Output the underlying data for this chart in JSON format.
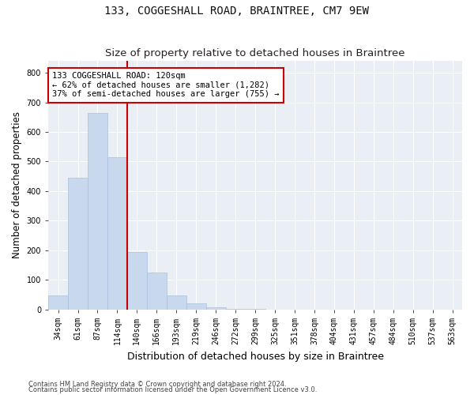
{
  "title": "133, COGGESHALL ROAD, BRAINTREE, CM7 9EW",
  "subtitle": "Size of property relative to detached houses in Braintree",
  "xlabel": "Distribution of detached houses by size in Braintree",
  "ylabel": "Number of detached properties",
  "categories": [
    "34sqm",
    "61sqm",
    "87sqm",
    "114sqm",
    "140sqm",
    "166sqm",
    "193sqm",
    "219sqm",
    "246sqm",
    "272sqm",
    "299sqm",
    "325sqm",
    "351sqm",
    "378sqm",
    "404sqm",
    "431sqm",
    "457sqm",
    "484sqm",
    "510sqm",
    "537sqm",
    "563sqm"
  ],
  "values": [
    47,
    445,
    665,
    515,
    195,
    125,
    47,
    22,
    9,
    2,
    2,
    0,
    0,
    0,
    0,
    0,
    0,
    0,
    0,
    0,
    0
  ],
  "bar_color": "#c8d9ee",
  "bar_edgecolor": "#a8c0de",
  "vline_x_index": 3.5,
  "vline_color": "#cc0000",
  "annotation_text": "133 COGGESHALL ROAD: 120sqm\n← 62% of detached houses are smaller (1,282)\n37% of semi-detached houses are larger (755) →",
  "annotation_box_color": "#ffffff",
  "annotation_box_edgecolor": "#cc0000",
  "ylim": [
    0,
    840
  ],
  "yticks": [
    0,
    100,
    200,
    300,
    400,
    500,
    600,
    700,
    800
  ],
  "footer1": "Contains HM Land Registry data © Crown copyright and database right 2024.",
  "footer2": "Contains public sector information licensed under the Open Government Licence v3.0.",
  "bg_color": "#ffffff",
  "plot_bg_color": "#eaeef5",
  "grid_color": "#ffffff",
  "title_fontsize": 10,
  "subtitle_fontsize": 9.5,
  "tick_fontsize": 7,
  "ylabel_fontsize": 8.5,
  "xlabel_fontsize": 9,
  "annotation_fontsize": 7.5,
  "footer_fontsize": 6
}
